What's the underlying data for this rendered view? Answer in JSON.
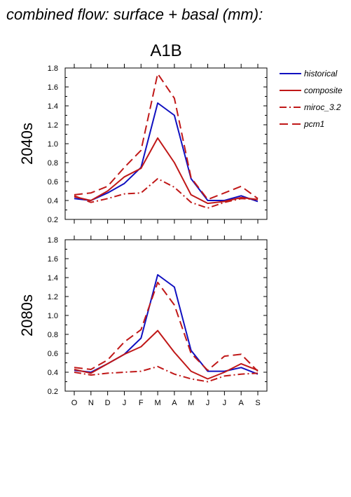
{
  "figure_title": "combined flow: surface + basal (mm):",
  "chart_data": {
    "type": "line",
    "title": "A1B",
    "categories": [
      "O",
      "N",
      "D",
      "J",
      "F",
      "M",
      "A",
      "M",
      "J",
      "J",
      "A",
      "S"
    ],
    "ylim": [
      0.2,
      1.8
    ],
    "yticks": [
      "0.2",
      "0.4",
      "0.6",
      "0.8",
      "1.0",
      "1.2",
      "1.4",
      "1.6",
      "1.8"
    ],
    "legend": {
      "placement": "right",
      "entries": [
        {
          "name": "historical",
          "color": "#1010c0",
          "dash": "solid"
        },
        {
          "name": "composite",
          "color": "#c01818",
          "dash": "solid"
        },
        {
          "name": "miroc_3.2",
          "color": "#c01818",
          "dash": "dashdot"
        },
        {
          "name": "pcm1",
          "color": "#c01818",
          "dash": "dash"
        }
      ]
    },
    "panels": [
      {
        "label": "2040s",
        "series": [
          {
            "name": "historical",
            "values": [
              0.42,
              0.4,
              0.48,
              0.58,
              0.75,
              1.43,
              1.3,
              0.63,
              0.4,
              0.4,
              0.45,
              0.39
            ]
          },
          {
            "name": "composite",
            "values": [
              0.44,
              0.4,
              0.5,
              0.65,
              0.74,
              1.06,
              0.8,
              0.46,
              0.37,
              0.39,
              0.43,
              0.41
            ]
          },
          {
            "name": "miroc_3.2",
            "values": [
              0.45,
              0.38,
              0.42,
              0.47,
              0.48,
              0.63,
              0.54,
              0.38,
              0.32,
              0.38,
              0.42,
              0.41
            ]
          },
          {
            "name": "pcm1",
            "values": [
              0.46,
              0.48,
              0.55,
              0.75,
              0.93,
              1.74,
              1.48,
              0.64,
              0.41,
              0.48,
              0.55,
              0.42
            ]
          }
        ]
      },
      {
        "label": "2080s",
        "series": [
          {
            "name": "historical",
            "values": [
              0.42,
              0.4,
              0.49,
              0.59,
              0.76,
              1.43,
              1.3,
              0.63,
              0.41,
              0.41,
              0.45,
              0.38
            ]
          },
          {
            "name": "composite",
            "values": [
              0.43,
              0.39,
              0.49,
              0.59,
              0.67,
              0.84,
              0.61,
              0.41,
              0.33,
              0.4,
              0.49,
              0.42
            ]
          },
          {
            "name": "miroc_3.2",
            "values": [
              0.4,
              0.37,
              0.39,
              0.4,
              0.41,
              0.46,
              0.38,
              0.33,
              0.3,
              0.36,
              0.38,
              0.39
            ]
          },
          {
            "name": "pcm1",
            "values": [
              0.45,
              0.43,
              0.53,
              0.72,
              0.85,
              1.35,
              1.11,
              0.6,
              0.42,
              0.57,
              0.59,
              0.41
            ]
          }
        ]
      }
    ]
  }
}
